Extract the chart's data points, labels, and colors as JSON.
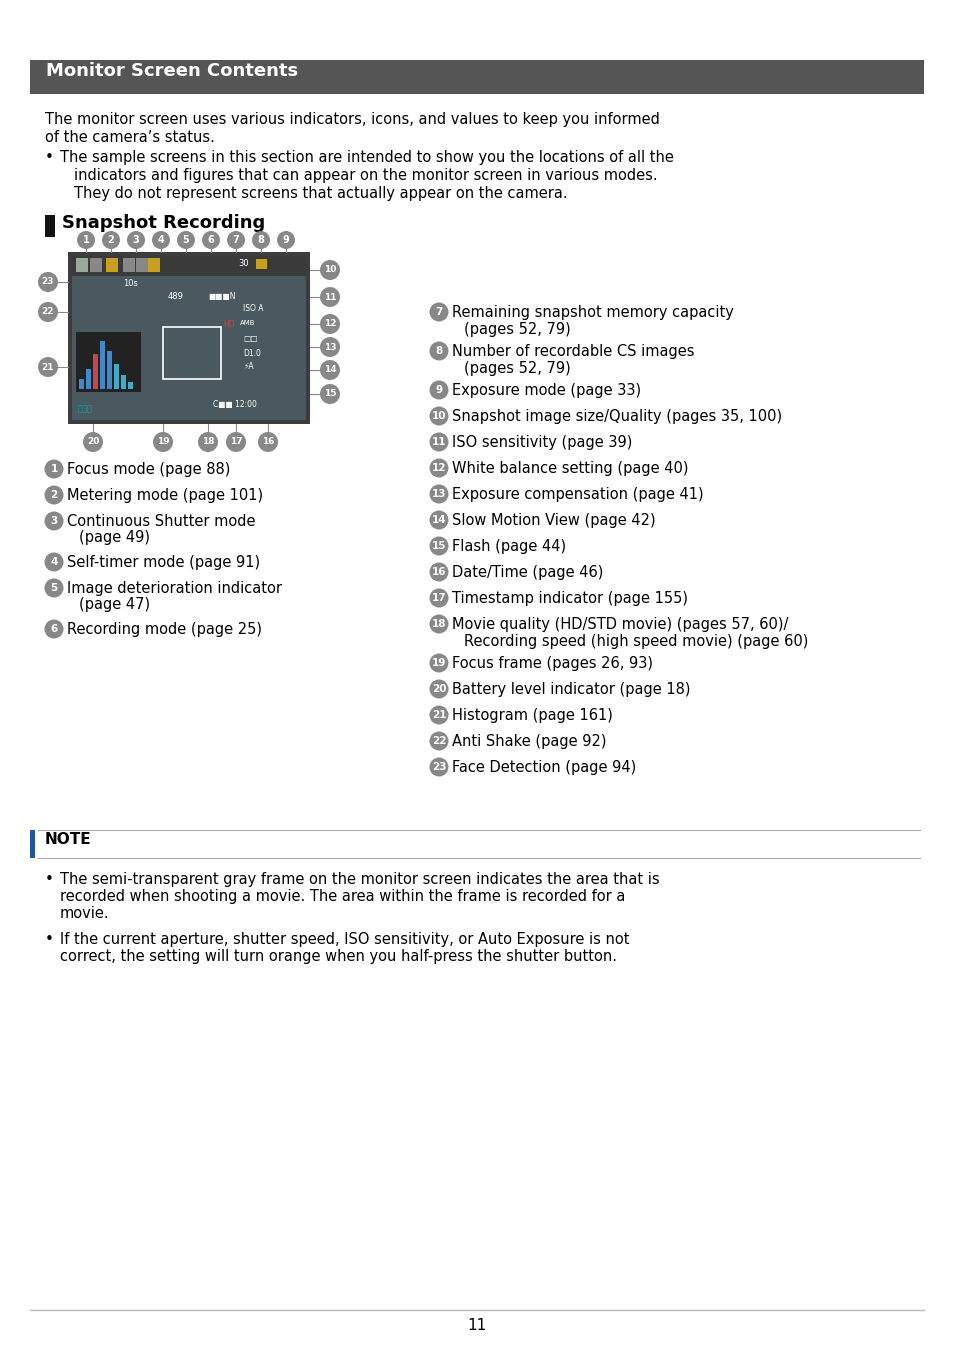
{
  "title": "Monitor Screen Contents",
  "title_bg": "#555555",
  "title_color": "#ffffff",
  "page_bg": "#ffffff",
  "page_number": "11",
  "circle_bg": "#888888",
  "circle_fg": "#ffffff",
  "intro_line1": "The monitor screen uses various indicators, icons, and values to keep you informed",
  "intro_line2": "of the camera’s status.",
  "bullet1": "The sample screens in this section are intended to show you the locations of all the",
  "bullet2": "indicators and figures that can appear on the monitor screen in various modes.",
  "bullet3": "They do not represent screens that actually appear on the camera.",
  "section_title": "Snapshot Recording",
  "left_col": [
    [
      "1",
      "Focus mode (page 88)",
      ""
    ],
    [
      "2",
      "Metering mode (page 101)",
      ""
    ],
    [
      "3",
      "Continuous Shutter mode",
      "(page 49)"
    ],
    [
      "4",
      "Self-timer mode (page 91)",
      ""
    ],
    [
      "5",
      "Image deterioration indicator",
      "(page 47)"
    ],
    [
      "6",
      "Recording mode (page 25)",
      ""
    ]
  ],
  "right_col": [
    [
      "7",
      "Remaining snapshot memory capacity",
      "(pages 52, 79)"
    ],
    [
      "8",
      "Number of recordable CS images",
      "(pages 52, 79)"
    ],
    [
      "9",
      "Exposure mode (page 33)",
      ""
    ],
    [
      "10",
      "Snapshot image size/Quality (pages 35, 100)",
      ""
    ],
    [
      "11",
      "ISO sensitivity (page 39)",
      ""
    ],
    [
      "12",
      "White balance setting (page 40)",
      ""
    ],
    [
      "13",
      "Exposure compensation (page 41)",
      ""
    ],
    [
      "14",
      "Slow Motion View (page 42)",
      ""
    ],
    [
      "15",
      "Flash (page 44)",
      ""
    ],
    [
      "16",
      "Date/Time (page 46)",
      ""
    ],
    [
      "17",
      "Timestamp indicator (page 155)",
      ""
    ],
    [
      "18",
      "Movie quality (HD/STD movie) (pages 57, 60)/",
      "Recording speed (high speed movie) (page 60)"
    ],
    [
      "19",
      "Focus frame (pages 26, 93)",
      ""
    ],
    [
      "20",
      "Battery level indicator (page 18)",
      ""
    ],
    [
      "21",
      "Histogram (page 161)",
      ""
    ],
    [
      "22",
      "Anti Shake (page 92)",
      ""
    ],
    [
      "23",
      "Face Detection (page 94)",
      ""
    ]
  ],
  "note_title": "NOTE",
  "note1a": "The semi-transparent gray frame on the monitor screen indicates the area that is",
  "note1b": "recorded when shooting a movie. The area within the frame is recorded for a",
  "note1c": "movie.",
  "note2a": "If the current aperture, shutter speed, ISO sensitivity, or Auto Exposure is not",
  "note2b": "correct, the setting will turn orange when you half-press the shutter button."
}
